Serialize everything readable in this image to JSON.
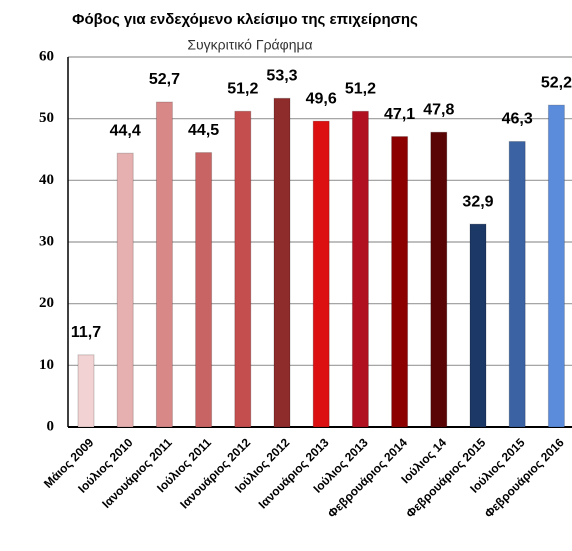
{
  "chart_data": {
    "type": "bar",
    "title": "Φόβος για ενδεχόμενο κλείσιμο της επιχείρησης",
    "subtitle": "Συγκριτικό Γράφημα",
    "categories": [
      "Μάιος 2009",
      "Ιούλιος 2010",
      "Ιανουάριος 2011",
      "Ιούλιος 2011",
      "Ιανουάριος 2012",
      "Ιούλιος 2012",
      "Ιανουάριος 2013",
      "Ιούλιος 2013",
      "Φεβρουάριος 2014",
      "Ιούλιος 14",
      "Φεβρουάριος 2015",
      "Ιούλιος 2015",
      "Φεβρουάριος 2016"
    ],
    "values": [
      11.7,
      44.4,
      52.7,
      44.5,
      51.2,
      53.3,
      49.6,
      51.2,
      47.1,
      47.8,
      32.9,
      46.3,
      52.2
    ],
    "value_labels": [
      "11,7",
      "44,4",
      "52,7",
      "44,5",
      "51,2",
      "53,3",
      "49,6",
      "51,2",
      "47,1",
      "47,8",
      "32,9",
      "46,3",
      "52,2"
    ],
    "colors": [
      "#f2d2d2",
      "#e6b0b0",
      "#d98888",
      "#c96464",
      "#c44e4e",
      "#8e2b2b",
      "#dc1010",
      "#b01020",
      "#8c0000",
      "#5a0505",
      "#1c3866",
      "#3b62a2",
      "#5b8cdc"
    ],
    "ylim": [
      0,
      60
    ],
    "yticks": [
      0,
      10,
      20,
      30,
      40,
      50,
      60
    ],
    "grid": true
  }
}
